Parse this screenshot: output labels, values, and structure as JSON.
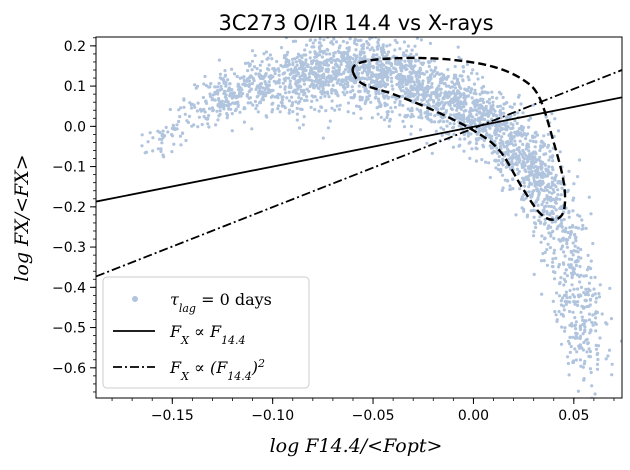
{
  "chart_data": {
    "type": "scatter",
    "title": "3C273    O/IR 14.4 vs X-rays",
    "xlabel": "log F14.4/<Fopt>",
    "ylabel": "log FX/<FX>",
    "xlim": [
      -0.188,
      0.074
    ],
    "ylim": [
      -0.675,
      0.222
    ],
    "xticks": [
      -0.15,
      -0.1,
      -0.05,
      0.0,
      0.05
    ],
    "xtick_labels": [
      "−0.15",
      "−0.10",
      "−0.05",
      "0.00",
      "0.05"
    ],
    "yticks": [
      0.2,
      0.1,
      0.0,
      -0.1,
      -0.2,
      -0.3,
      -0.4,
      -0.5,
      -0.6
    ],
    "ytick_labels": [
      "0.2",
      "0.1",
      "0.0",
      "−0.1",
      "−0.2",
      "−0.3",
      "−0.4",
      "−0.5",
      "−0.6"
    ],
    "grid": false,
    "legend_position": "lower-left",
    "colors": {
      "scatter": "#b0c4de",
      "line": "#000000",
      "dashdot": "#000000",
      "contour": "#000000"
    },
    "series": [
      {
        "name": "τlag = 0  days",
        "legend_label_main": "τ",
        "legend_label_sub": "lag",
        "legend_label_rest": " = 0  days",
        "kind": "scatter",
        "ridge": [
          [
            -0.16,
            -0.06
          ],
          [
            -0.15,
            -0.01
          ],
          [
            -0.14,
            0.03
          ],
          [
            -0.13,
            0.06
          ],
          [
            -0.12,
            0.08
          ],
          [
            -0.11,
            0.1
          ],
          [
            -0.1,
            0.11
          ],
          [
            -0.09,
            0.12
          ],
          [
            -0.08,
            0.13
          ],
          [
            -0.07,
            0.14
          ],
          [
            -0.06,
            0.14
          ],
          [
            -0.05,
            0.13
          ],
          [
            -0.04,
            0.12
          ],
          [
            -0.03,
            0.11
          ],
          [
            -0.02,
            0.08
          ],
          [
            -0.01,
            0.06
          ],
          [
            0.0,
            0.03
          ],
          [
            0.01,
            0.0
          ],
          [
            0.02,
            -0.04
          ],
          [
            0.03,
            -0.1
          ],
          [
            0.035,
            -0.15
          ],
          [
            0.04,
            -0.22
          ],
          [
            0.045,
            -0.3
          ],
          [
            0.05,
            -0.4
          ],
          [
            0.055,
            -0.5
          ],
          [
            0.06,
            -0.58
          ]
        ]
      },
      {
        "name": "FX ∝ F14.4",
        "legend_label_main": "F",
        "legend_label_sub": "X",
        "legend_label_rest": " ∝ F",
        "legend_label_sub2": "14.4",
        "kind": "line",
        "points": [
          [
            -0.188,
            -0.187
          ],
          [
            0.074,
            0.072
          ]
        ]
      },
      {
        "name": "FX ∝ (F14.4)2",
        "legend_label_main": "F",
        "legend_label_sub": "X",
        "legend_label_rest": " ∝ (F",
        "legend_label_sub2": "14.4",
        "legend_label_tail": ")",
        "legend_label_sup": "2",
        "kind": "dashdot",
        "points": [
          [
            -0.188,
            -0.373
          ],
          [
            0.074,
            0.14
          ]
        ]
      },
      {
        "kind": "contour",
        "points": [
          [
            -0.06,
            0.135
          ],
          [
            -0.058,
            0.155
          ],
          [
            -0.048,
            0.166
          ],
          [
            -0.03,
            0.17
          ],
          [
            -0.01,
            0.165
          ],
          [
            0.01,
            0.148
          ],
          [
            0.025,
            0.115
          ],
          [
            0.033,
            0.07
          ],
          [
            0.04,
            -0.04
          ],
          [
            0.045,
            -0.14
          ],
          [
            0.045,
            -0.21
          ],
          [
            0.04,
            -0.232
          ],
          [
            0.033,
            -0.215
          ],
          [
            0.024,
            -0.15
          ],
          [
            0.013,
            -0.06
          ],
          [
            0.0,
            -0.01
          ],
          [
            -0.02,
            0.04
          ],
          [
            -0.04,
            0.08
          ],
          [
            -0.055,
            0.105
          ],
          [
            -0.06,
            0.135
          ]
        ]
      }
    ]
  }
}
